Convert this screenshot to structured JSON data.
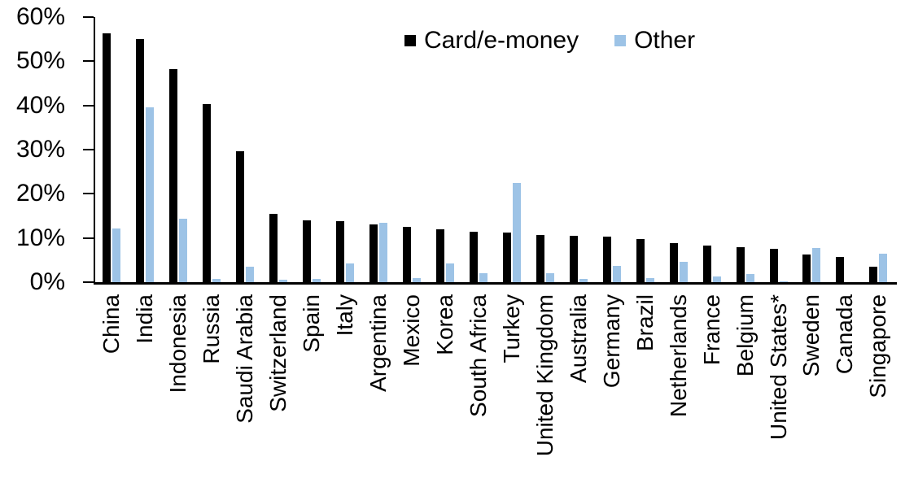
{
  "chart_data": {
    "type": "bar",
    "categories": [
      "China",
      "India",
      "Indonesia",
      "Russia",
      "Saudi Arabia",
      "Switzerland",
      "Spain",
      "Italy",
      "Argentina",
      "Mexico",
      "Korea",
      "South Africa",
      "Turkey",
      "United Kingdom",
      "Australia",
      "Germany",
      "Brazil",
      "Netherlands",
      "France",
      "Belgium",
      "United States*",
      "Sweden",
      "Canada",
      "Singapore"
    ],
    "series": [
      {
        "name": "Card/e-money",
        "color": "#000000",
        "values": [
          56.3,
          55.0,
          48.2,
          40.4,
          29.7,
          15.4,
          13.9,
          13.8,
          13.1,
          12.6,
          11.9,
          11.4,
          11.3,
          10.7,
          10.5,
          10.3,
          9.8,
          8.9,
          8.3,
          7.9,
          7.6,
          6.3,
          5.7,
          3.5
        ]
      },
      {
        "name": "Other",
        "color": "#9DC3E6",
        "values": [
          12.2,
          39.6,
          14.3,
          0.7,
          3.5,
          0.5,
          0.7,
          4.2,
          13.5,
          1.0,
          4.2,
          2.1,
          22.4,
          2.1,
          0.7,
          3.7,
          0.9,
          4.6,
          1.3,
          1.8,
          0.2,
          7.8,
          0.0,
          6.4
        ]
      }
    ],
    "value_unit": "%",
    "ylim": [
      0,
      60
    ],
    "ytick_step": 10,
    "ytick_labels": [
      "0%",
      "10%",
      "20%",
      "30%",
      "40%",
      "50%",
      "60%"
    ],
    "grid": false,
    "legend_position": "top-center",
    "axis_color": "#000000"
  }
}
